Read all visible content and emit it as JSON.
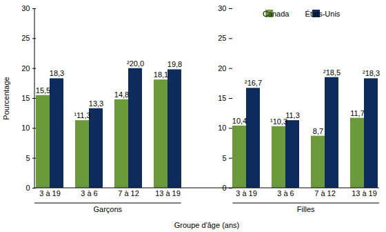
{
  "chart_data": {
    "type": "bar",
    "x_label": "Groupe d'âge (ans)",
    "y_label": "Pourcentage",
    "categories": [
      "3 à 19",
      "3 à 6",
      "7 à 12",
      "13 à 19",
      "3 à 19",
      "3 à 6",
      "7 à 12",
      "13 à 19"
    ],
    "category_groups": [
      "Garçons",
      "Garçons",
      "Garçons",
      "Garçons",
      "Filles",
      "Filles",
      "Filles",
      "Filles"
    ],
    "series": [
      {
        "name": "Canada",
        "color": "#6b9a3a",
        "values": [
          15.5,
          11.3,
          14.8,
          18.1,
          10.4,
          10.3,
          8.7,
          11.7
        ],
        "value_labels": [
          "15,5",
          "¹11,3",
          "14,8",
          "18,1",
          "10,4",
          "¹10,3",
          "8,7",
          "11,7"
        ]
      },
      {
        "name": "États-Unis",
        "color": "#0d2b5c",
        "values": [
          18.3,
          13.3,
          20.0,
          19.8,
          16.7,
          11.3,
          18.5,
          18.3
        ],
        "value_labels": [
          "18,3",
          "13,3",
          "²20,0",
          "19,8",
          "²16,7",
          "11,3",
          "²18,5",
          "²18,3"
        ]
      }
    ],
    "ylim": [
      0,
      30
    ],
    "yticks": [
      0,
      5,
      10,
      15,
      20,
      25,
      30
    ],
    "grid": false,
    "legend": "top-right",
    "data_labels": true
  }
}
